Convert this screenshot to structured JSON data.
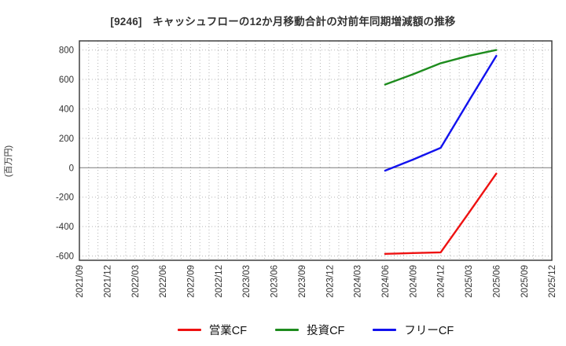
{
  "title": "[9246]　キャッシュフローの12か月移動合計の対前年同期増減額の推移",
  "chart_data": {
    "type": "line",
    "title": "[9246]　キャッシュフローの12か月移動合計の対前年同期増減額の推移",
    "xlabel": "",
    "ylabel": "(百万円)",
    "ylim": [
      -630,
      865
    ],
    "yticks": [
      -600,
      -400,
      -200,
      0,
      200,
      400,
      600,
      800
    ],
    "grid": "on",
    "grid_style": "dotted monthly vertical lines; dotted horizontal lines every 200; solid gray zero line",
    "legend_position": "bottom-center",
    "x_tick_labels": [
      "2021/09",
      "2021/12",
      "2022/03",
      "2022/06",
      "2022/09",
      "2022/12",
      "2023/03",
      "2023/06",
      "2023/09",
      "2023/12",
      "2024/03",
      "2024/06",
      "2024/09",
      "2024/12",
      "2025/03",
      "2025/06",
      "2025/09",
      "2025/12"
    ],
    "x_axis_span": [
      "2021/09",
      "2025/12"
    ],
    "x_data_points": [
      "2024/06",
      "2024/09",
      "2024/12",
      "2025/03",
      "2025/06"
    ],
    "series": [
      {
        "name": "営業CF",
        "key": "operating-cf",
        "color": "#ee1111",
        "values": [
          -585,
          -580,
          -575,
          -310,
          -40
        ]
      },
      {
        "name": "投資CF",
        "key": "investing-cf",
        "color": "#1e8c1e",
        "values": [
          565,
          635,
          710,
          760,
          800
        ]
      },
      {
        "name": "フリーCF",
        "key": "free-cf",
        "color": "#1212ee",
        "values": [
          -20,
          55,
          135,
          450,
          760
        ]
      }
    ],
    "colors": {
      "frame": "#333333",
      "gridline": "#b5b5b5",
      "zero_line": "#8a8a8a",
      "tick_label": "#333333",
      "title": "#333333",
      "legend_text": "#111111",
      "background": "#ffffff"
    }
  }
}
